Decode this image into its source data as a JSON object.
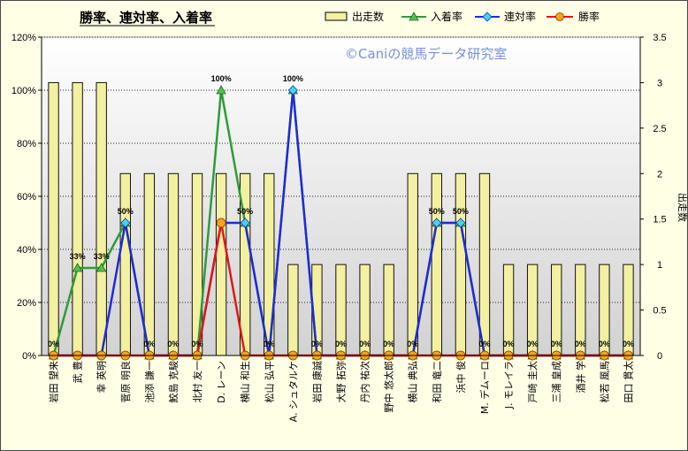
{
  "chart_data": {
    "type": "bar+line",
    "title": "勝率、連対率、入着率",
    "watermark": "©Caniの競馬データ研究室",
    "y2label": "出走数",
    "categories": [
      "岩田 望来",
      "武 豊",
      "幸 英明",
      "菅原 明良",
      "池添 謙一",
      "鮫島 克駿",
      "北村 友一",
      "D. レーン",
      "横山 和生",
      "松山 弘平",
      "A. シュタルケ",
      "岩田 康誠",
      "大野 拓弥",
      "丹内 祐次",
      "野中 悠太郎",
      "横山 典弘",
      "和田 竜二",
      "浜中 俊",
      "M. デムーロ",
      "J. モレイラ",
      "戸崎 圭太",
      "三浦 皇成",
      "酒井 学",
      "松若 風馬",
      "田口 貫太"
    ],
    "series": [
      {
        "name": "出走数",
        "type": "bar",
        "axis": "right",
        "values": [
          3,
          3,
          3,
          2,
          2,
          2,
          2,
          2,
          2,
          2,
          1,
          1,
          1,
          1,
          1,
          2,
          2,
          2,
          2,
          1,
          1,
          1,
          1,
          1,
          1
        ]
      },
      {
        "name": "入着率",
        "type": "line",
        "axis": "left",
        "values": [
          0,
          33,
          33,
          50,
          0,
          0,
          0,
          100,
          50,
          0,
          100,
          0,
          0,
          0,
          0,
          0,
          50,
          50,
          0,
          0,
          0,
          0,
          0,
          0,
          0
        ]
      },
      {
        "name": "連対率",
        "type": "line",
        "axis": "left",
        "values": [
          0,
          0,
          0,
          50,
          0,
          0,
          0,
          50,
          50,
          0,
          100,
          0,
          0,
          0,
          0,
          0,
          50,
          50,
          0,
          0,
          0,
          0,
          0,
          0,
          0
        ]
      },
      {
        "name": "勝率",
        "type": "line",
        "axis": "left",
        "values": [
          0,
          0,
          0,
          0,
          0,
          0,
          0,
          50,
          0,
          0,
          0,
          0,
          0,
          0,
          0,
          0,
          0,
          0,
          0,
          0,
          0,
          0,
          0,
          0,
          0
        ]
      }
    ],
    "data_labels": [
      "0%",
      "33%",
      "33%",
      "50%",
      "0%",
      "0%",
      "0%",
      "100%",
      "50%",
      "0%",
      "100%",
      "0%",
      "0%",
      "0%",
      "0%",
      "0%",
      "50%",
      "50%",
      "0%",
      "0%",
      "0%",
      "0%",
      "0%",
      "0%",
      "0%"
    ],
    "y_ticks": [
      "0%",
      "20%",
      "40%",
      "60%",
      "80%",
      "100%",
      "120%"
    ],
    "y2_ticks": [
      "0",
      "0.5",
      "1",
      "1.5",
      "2",
      "2.5",
      "3",
      "3.5"
    ],
    "ylim": [
      0,
      120
    ],
    "y2lim": [
      0,
      3.5
    ],
    "grid": true,
    "legend_position": "top",
    "colors": {
      "bar_fill": "#f3f0a2",
      "bar_stroke": "#111111",
      "place": "#2e9b3b",
      "quinella": "#1f2bd6",
      "win": "#e01818",
      "marker_place": "#53c24f",
      "marker_quinella": "#44d6e8",
      "marker_win": "#f2a51a"
    }
  }
}
